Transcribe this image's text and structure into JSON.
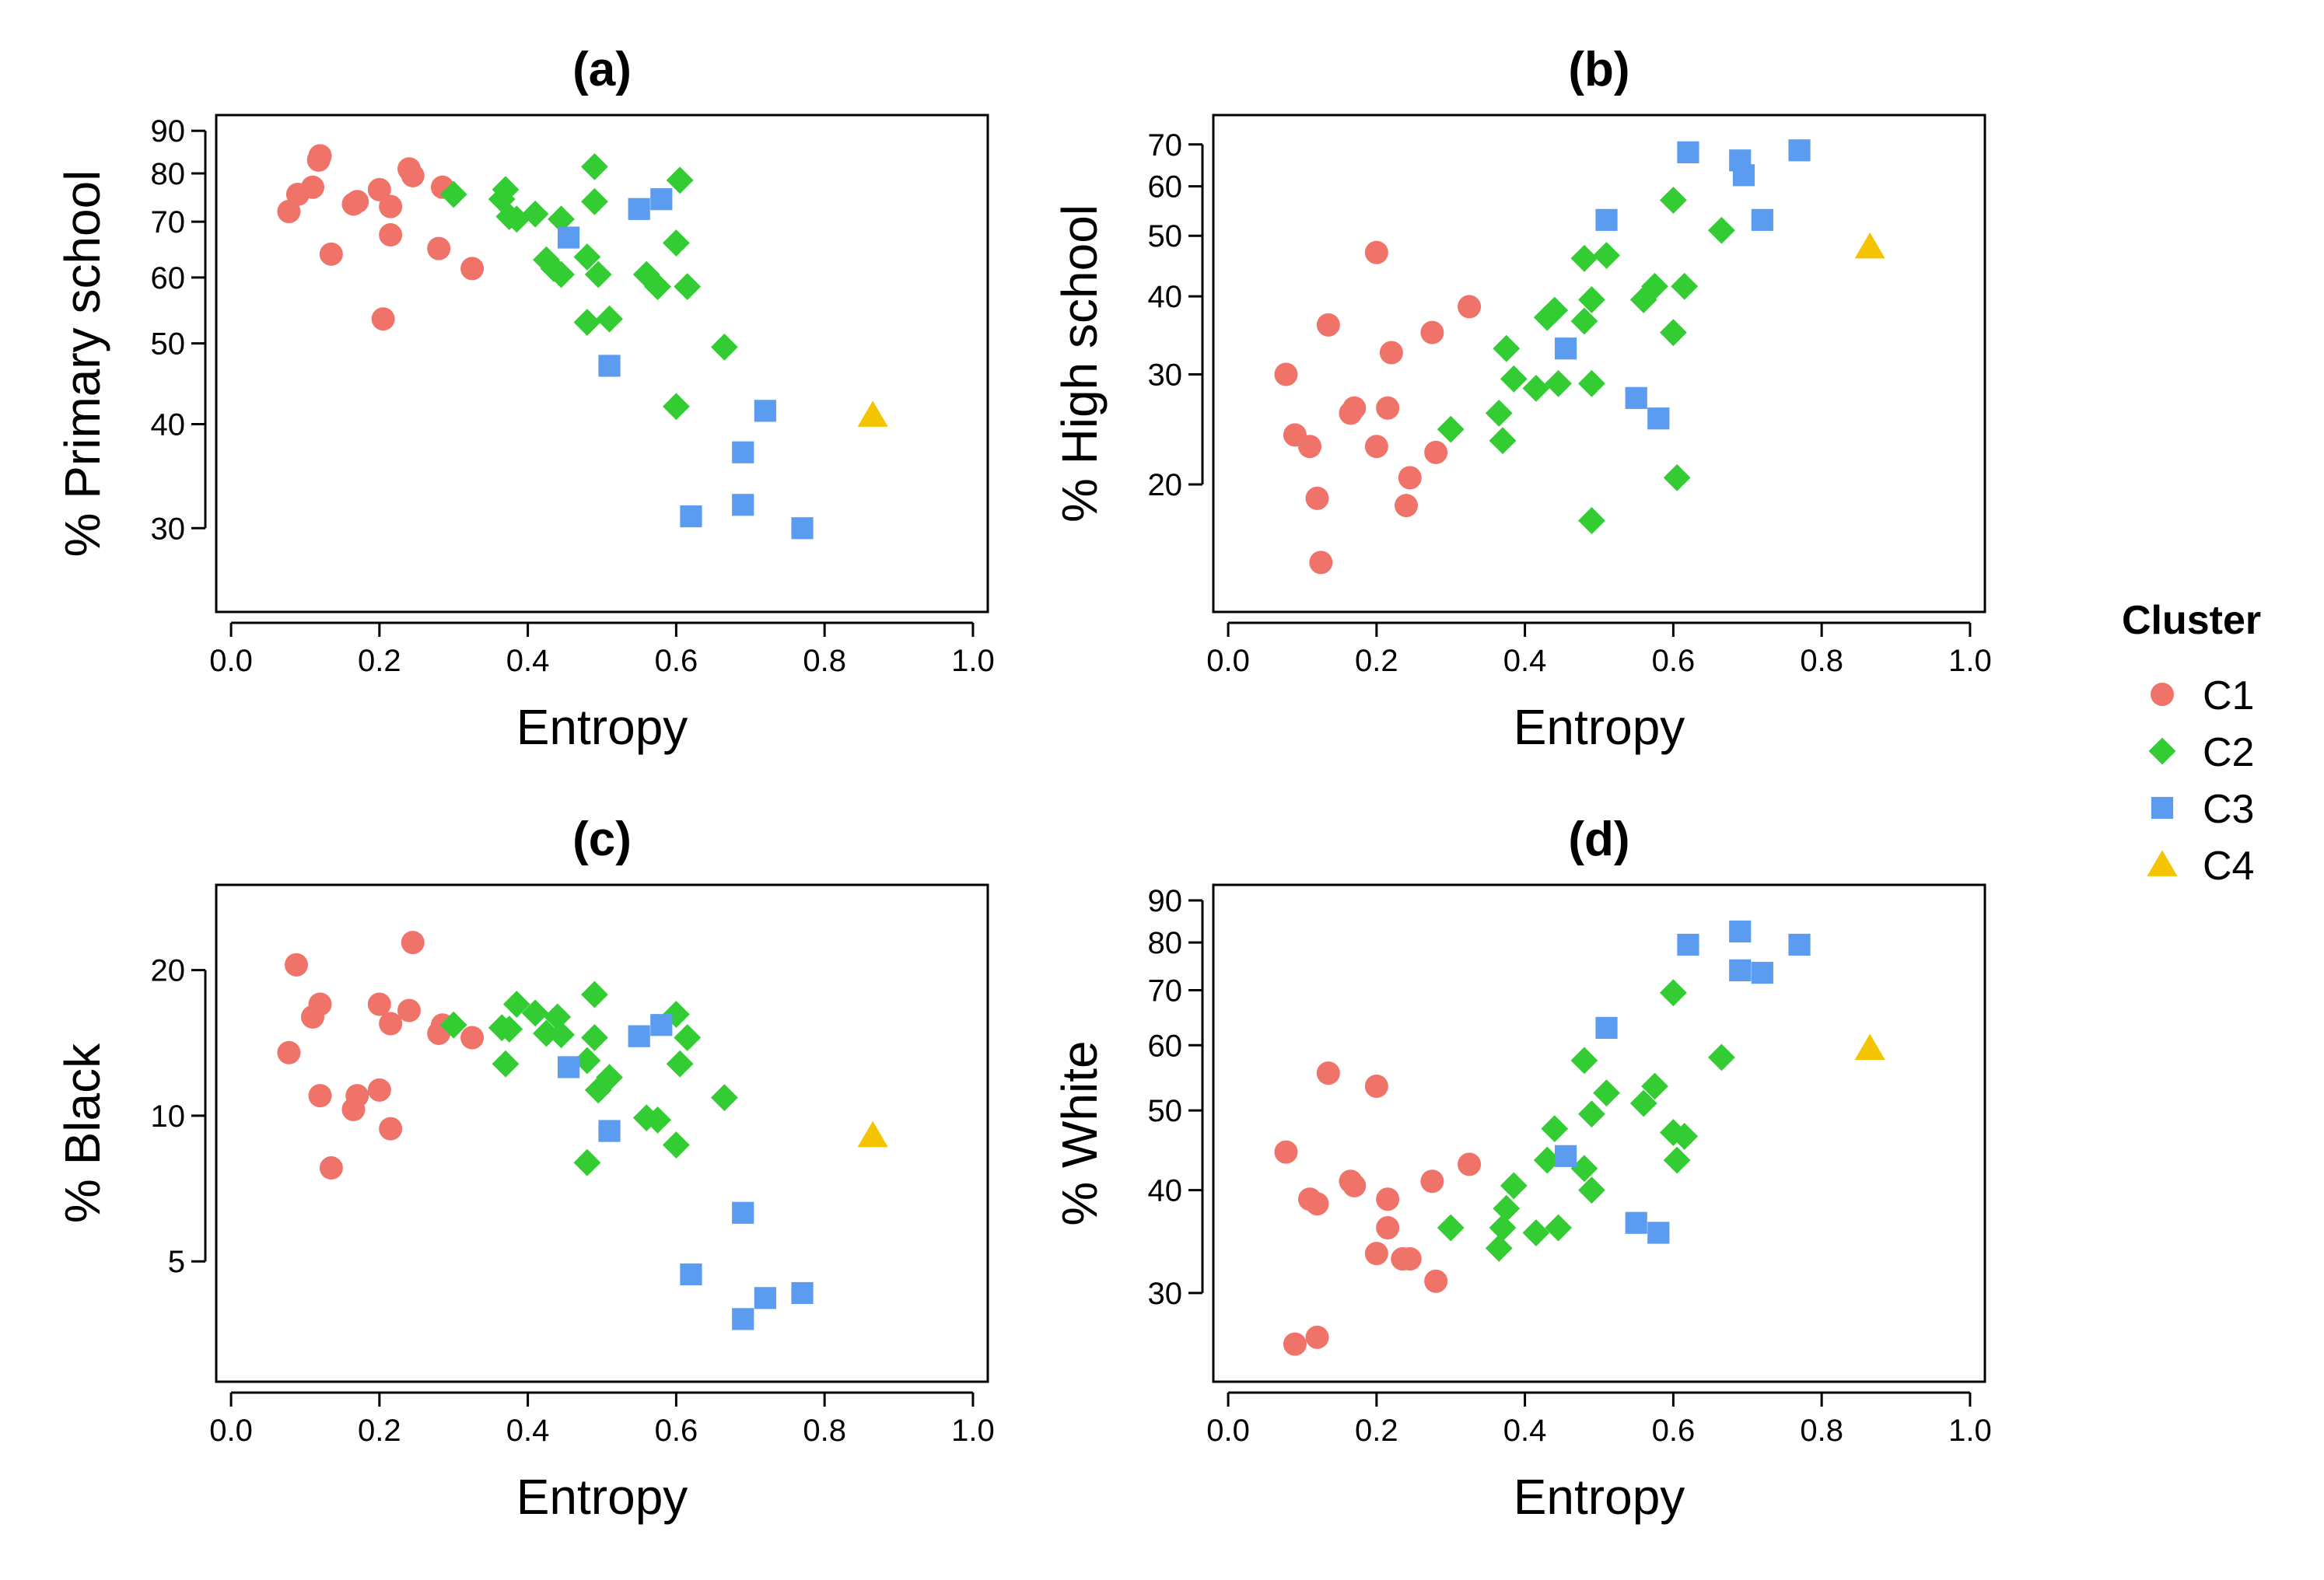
{
  "colors": {
    "C1": "#F0736A",
    "C2": "#33CC33",
    "C3": "#5B9CF0",
    "C4": "#F5C400"
  },
  "shapes": {
    "C1": "circle",
    "C2": "diamond",
    "C3": "square",
    "C4": "triangle"
  },
  "legend": {
    "title": "Cluster",
    "items": [
      "C1",
      "C2",
      "C3",
      "C4"
    ]
  },
  "chart_data": [
    {
      "type": "scatter",
      "title": "(a)",
      "xlabel": "Entropy",
      "ylabel": "% Primary school",
      "xlim": [
        -0.02,
        1.02
      ],
      "xticks": [
        0.0,
        0.2,
        0.4,
        0.6,
        0.8,
        1.0
      ],
      "xtick_labels": [
        "0.0",
        "0.2",
        "0.4",
        "0.6",
        "0.8",
        "1.0"
      ],
      "yscale": "log",
      "ylim": [
        23.8,
        94
      ],
      "yticks": [
        30,
        40,
        50,
        60,
        70,
        80,
        90
      ],
      "series": [
        {
          "name": "C1",
          "points": [
            [
              0.078,
              72
            ],
            [
              0.09,
              75.5
            ],
            [
              0.11,
              77
            ],
            [
              0.118,
              83
            ],
            [
              0.12,
              84
            ],
            [
              0.135,
              64
            ],
            [
              0.165,
              73.5
            ],
            [
              0.17,
              74
            ],
            [
              0.2,
              76.5
            ],
            [
              0.205,
              53.5
            ],
            [
              0.215,
              73
            ],
            [
              0.215,
              67.5
            ],
            [
              0.24,
              81
            ],
            [
              0.245,
              79.5
            ],
            [
              0.28,
              65
            ],
            [
              0.285,
              77
            ],
            [
              0.325,
              61.5
            ]
          ]
        },
        {
          "name": "C2",
          "points": [
            [
              0.3,
              75.5
            ],
            [
              0.365,
              74.5
            ],
            [
              0.37,
              76.5
            ],
            [
              0.375,
              71
            ],
            [
              0.385,
              70.5
            ],
            [
              0.41,
              71.5
            ],
            [
              0.425,
              63
            ],
            [
              0.435,
              61.5
            ],
            [
              0.445,
              60.5
            ],
            [
              0.445,
              70.5
            ],
            [
              0.48,
              53
            ],
            [
              0.48,
              63.5
            ],
            [
              0.49,
              81.5
            ],
            [
              0.49,
              74
            ],
            [
              0.495,
              60.5
            ],
            [
              0.51,
              53.5
            ],
            [
              0.56,
              60.5
            ],
            [
              0.575,
              58.5
            ],
            [
              0.6,
              42
            ],
            [
              0.6,
              66
            ],
            [
              0.605,
              78.5
            ],
            [
              0.615,
              58.5
            ],
            [
              0.665,
              49.5
            ]
          ]
        },
        {
          "name": "C3",
          "points": [
            [
              0.455,
              67
            ],
            [
              0.51,
              47
            ],
            [
              0.55,
              72.5
            ],
            [
              0.58,
              74.5
            ],
            [
              0.62,
              31
            ],
            [
              0.69,
              37
            ],
            [
              0.69,
              32
            ],
            [
              0.72,
              41.5
            ],
            [
              0.77,
              30
            ]
          ]
        },
        {
          "name": "C4",
          "points": [
            [
              0.865,
              41
            ]
          ]
        }
      ]
    },
    {
      "type": "scatter",
      "title": "(b)",
      "xlabel": "Entropy",
      "ylabel": "% High school",
      "xlim": [
        -0.02,
        1.02
      ],
      "xticks": [
        0.0,
        0.2,
        0.4,
        0.6,
        0.8,
        1.0
      ],
      "xtick_labels": [
        "0.0",
        "0.2",
        "0.4",
        "0.6",
        "0.8",
        "1.0"
      ],
      "yscale": "log",
      "ylim": [
        12.5,
        78
      ],
      "yticks": [
        20,
        30,
        40,
        50,
        60,
        70
      ],
      "series": [
        {
          "name": "C1",
          "points": [
            [
              0.078,
              30
            ],
            [
              0.09,
              24
            ],
            [
              0.11,
              23
            ],
            [
              0.12,
              19
            ],
            [
              0.125,
              15
            ],
            [
              0.135,
              36
            ],
            [
              0.165,
              26
            ],
            [
              0.17,
              26.5
            ],
            [
              0.2,
              47
            ],
            [
              0.2,
              23
            ],
            [
              0.215,
              26.5
            ],
            [
              0.22,
              32.5
            ],
            [
              0.24,
              18.5
            ],
            [
              0.245,
              20.5
            ],
            [
              0.275,
              35
            ],
            [
              0.28,
              22.5
            ],
            [
              0.325,
              38.5
            ]
          ]
        },
        {
          "name": "C2",
          "points": [
            [
              0.3,
              24.5
            ],
            [
              0.365,
              26
            ],
            [
              0.37,
              23.5
            ],
            [
              0.375,
              33
            ],
            [
              0.385,
              29.5
            ],
            [
              0.415,
              28.5
            ],
            [
              0.43,
              37
            ],
            [
              0.44,
              38
            ],
            [
              0.445,
              29
            ],
            [
              0.48,
              46
            ],
            [
              0.48,
              36.5
            ],
            [
              0.49,
              39.5
            ],
            [
              0.49,
              29
            ],
            [
              0.49,
              17.5
            ],
            [
              0.51,
              46.5
            ],
            [
              0.56,
              39.5
            ],
            [
              0.575,
              41.5
            ],
            [
              0.6,
              57
            ],
            [
              0.6,
              35
            ],
            [
              0.605,
              20.5
            ],
            [
              0.615,
              41.5
            ],
            [
              0.665,
              51
            ]
          ]
        },
        {
          "name": "C3",
          "points": [
            [
              0.455,
              33
            ],
            [
              0.51,
              53
            ],
            [
              0.55,
              27.5
            ],
            [
              0.58,
              25.5
            ],
            [
              0.62,
              68
            ],
            [
              0.69,
              66
            ],
            [
              0.695,
              62.5
            ],
            [
              0.72,
              53
            ],
            [
              0.77,
              68.5
            ]
          ]
        },
        {
          "name": "C4",
          "points": [
            [
              0.865,
              48
            ]
          ]
        }
      ]
    },
    {
      "type": "scatter",
      "title": "(c)",
      "xlabel": "Entropy",
      "ylabel": "% Black",
      "xlim": [
        -0.02,
        1.02
      ],
      "xticks": [
        0.0,
        0.2,
        0.4,
        0.6,
        0.8,
        1.0
      ],
      "xtick_labels": [
        "0.0",
        "0.2",
        "0.4",
        "0.6",
        "0.8",
        "1.0"
      ],
      "yscale": "log",
      "ylim": [
        2.82,
        30
      ],
      "yticks": [
        5,
        10,
        20
      ],
      "series": [
        {
          "name": "C1",
          "points": [
            [
              0.078,
              13.5
            ],
            [
              0.088,
              20.5
            ],
            [
              0.11,
              16
            ],
            [
              0.12,
              17
            ],
            [
              0.12,
              11
            ],
            [
              0.135,
              7.8
            ],
            [
              0.165,
              10.3
            ],
            [
              0.17,
              11
            ],
            [
              0.2,
              17
            ],
            [
              0.2,
              11.3
            ],
            [
              0.215,
              15.5
            ],
            [
              0.215,
              9.4
            ],
            [
              0.24,
              16.5
            ],
            [
              0.245,
              22.8
            ],
            [
              0.28,
              14.8
            ],
            [
              0.285,
              15.4
            ],
            [
              0.325,
              14.5
            ]
          ]
        },
        {
          "name": "C2",
          "points": [
            [
              0.3,
              15.4
            ],
            [
              0.365,
              15.2
            ],
            [
              0.37,
              12.8
            ],
            [
              0.375,
              15.1
            ],
            [
              0.385,
              17
            ],
            [
              0.41,
              16.3
            ],
            [
              0.425,
              14.8
            ],
            [
              0.44,
              16
            ],
            [
              0.445,
              14.7
            ],
            [
              0.48,
              8
            ],
            [
              0.48,
              13
            ],
            [
              0.49,
              17.8
            ],
            [
              0.49,
              14.5
            ],
            [
              0.495,
              11.3
            ],
            [
              0.51,
              12
            ],
            [
              0.56,
              9.9
            ],
            [
              0.575,
              9.8
            ],
            [
              0.6,
              8.7
            ],
            [
              0.6,
              16.2
            ],
            [
              0.605,
              12.8
            ],
            [
              0.615,
              14.5
            ],
            [
              0.665,
              10.9
            ]
          ]
        },
        {
          "name": "C3",
          "points": [
            [
              0.455,
              12.6
            ],
            [
              0.51,
              9.3
            ],
            [
              0.55,
              14.6
            ],
            [
              0.58,
              15.4
            ],
            [
              0.62,
              4.7
            ],
            [
              0.69,
              6.3
            ],
            [
              0.69,
              3.8
            ],
            [
              0.72,
              4.2
            ],
            [
              0.77,
              4.3
            ]
          ]
        },
        {
          "name": "C4",
          "points": [
            [
              0.865,
              9.1
            ]
          ]
        }
      ]
    },
    {
      "type": "scatter",
      "title": "(d)",
      "xlabel": "Entropy",
      "ylabel": "% White",
      "xlim": [
        -0.02,
        1.02
      ],
      "xticks": [
        0.0,
        0.2,
        0.4,
        0.6,
        0.8,
        1.0
      ],
      "xtick_labels": [
        "0.0",
        "0.2",
        "0.4",
        "0.6",
        "0.8",
        "1.0"
      ],
      "yscale": "log",
      "ylim": [
        23.4,
        94
      ],
      "yticks": [
        30,
        40,
        50,
        60,
        70,
        80,
        90
      ],
      "series": [
        {
          "name": "C1",
          "points": [
            [
              0.078,
              44.5
            ],
            [
              0.09,
              26
            ],
            [
              0.11,
              39
            ],
            [
              0.12,
              38.5
            ],
            [
              0.12,
              26.5
            ],
            [
              0.135,
              55.5
            ],
            [
              0.165,
              41
            ],
            [
              0.17,
              40.5
            ],
            [
              0.2,
              53.5
            ],
            [
              0.2,
              33.5
            ],
            [
              0.215,
              39
            ],
            [
              0.215,
              36
            ],
            [
              0.235,
              33
            ],
            [
              0.245,
              33
            ],
            [
              0.275,
              41
            ],
            [
              0.28,
              31
            ],
            [
              0.325,
              43
            ]
          ]
        },
        {
          "name": "C2",
          "points": [
            [
              0.3,
              36
            ],
            [
              0.365,
              34
            ],
            [
              0.37,
              36
            ],
            [
              0.375,
              38
            ],
            [
              0.385,
              40.5
            ],
            [
              0.415,
              35.5
            ],
            [
              0.43,
              43.5
            ],
            [
              0.44,
              47.5
            ],
            [
              0.445,
              36
            ],
            [
              0.48,
              57.5
            ],
            [
              0.48,
              42.5
            ],
            [
              0.49,
              49.5
            ],
            [
              0.49,
              40
            ],
            [
              0.51,
              52.5
            ],
            [
              0.56,
              51
            ],
            [
              0.575,
              53.5
            ],
            [
              0.6,
              69.5
            ],
            [
              0.6,
              47
            ],
            [
              0.605,
              43.5
            ],
            [
              0.615,
              46.5
            ],
            [
              0.665,
              58
            ]
          ]
        },
        {
          "name": "C3",
          "points": [
            [
              0.455,
              44
            ],
            [
              0.51,
              63
            ],
            [
              0.55,
              36.5
            ],
            [
              0.58,
              35.5
            ],
            [
              0.62,
              79.5
            ],
            [
              0.69,
              82.5
            ],
            [
              0.69,
              74
            ],
            [
              0.72,
              73.5
            ],
            [
              0.77,
              79.5
            ]
          ]
        },
        {
          "name": "C4",
          "points": [
            [
              0.865,
              59.5
            ]
          ]
        }
      ]
    }
  ]
}
